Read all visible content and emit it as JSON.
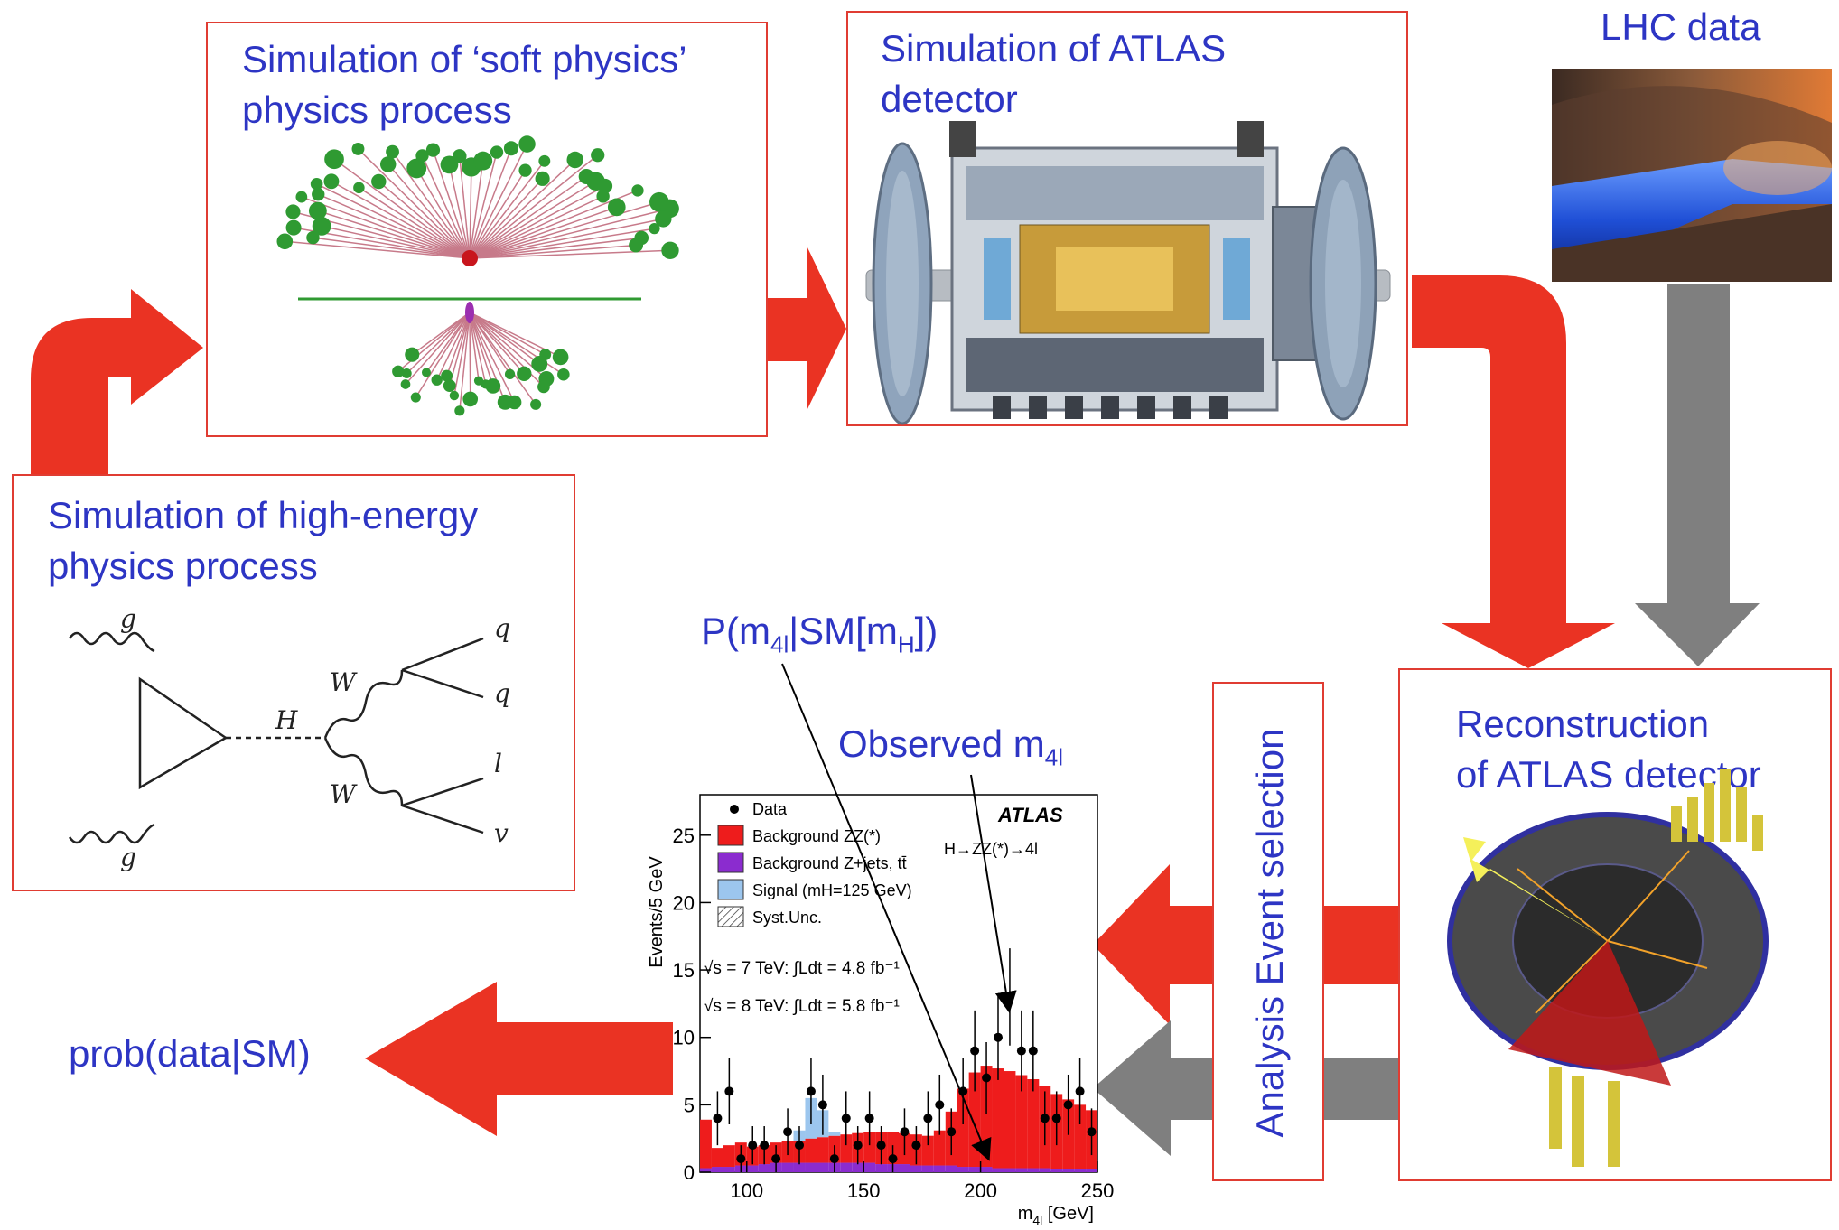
{
  "panels": {
    "soft_physics": {
      "title": "Simulation of ‘soft physics’\nphysics process"
    },
    "atlas_sim": {
      "title": "Simulation of ATLAS\ndetector"
    },
    "lhc": {
      "title": "LHC data"
    },
    "high_energy": {
      "title": "Simulation of high-energy\nphysics process"
    },
    "reconstruction": {
      "title": "Reconstruction\nof ATLAS detector"
    },
    "event_selection": {
      "title": "Analysis Event selection"
    }
  },
  "feynman": {
    "g_top": "g",
    "g_bottom": "g",
    "H": "H",
    "W_top": "W",
    "W_bottom": "W",
    "q1": "q",
    "q2": "q",
    "l": "l",
    "v": "v"
  },
  "labels": {
    "prob": "prob(data|SM)",
    "p_base": "P(m",
    "p_sub1": "4l",
    "p_mid": "|SM[m",
    "p_sub2": "H",
    "p_end": "])",
    "obs_base": "Observed m",
    "obs_sub": "4l"
  },
  "colors": {
    "arrow_red": "#ea3323",
    "arrow_gray": "#7f7f7f",
    "panel_border": "#e03c32",
    "title_blue": "#2d35c4",
    "bkg_zz": "#ee1c1c",
    "bkg_zjets": "#8b2ccf",
    "signal": "#9cc6ee"
  },
  "chart_data": {
    "type": "bar",
    "ylabel": "Events/5 GeV",
    "xlabel_base": "m",
    "xlabel_sub": "4l",
    "xlabel_unit": " [GeV]",
    "xlim": [
      80,
      250
    ],
    "ylim": [
      0,
      28
    ],
    "x_ticks": [
      "100",
      "150",
      "200",
      "250"
    ],
    "y_ticks": [
      "0",
      "5",
      "10",
      "15",
      "20",
      "25"
    ],
    "brand": "ATLAS",
    "process": "H→ZZ(*)→4l",
    "lumi_7": "√s = 7 TeV: ∫Ldt = 4.8 fb⁻¹",
    "lumi_8": "√s = 8 TeV: ∫Ldt = 5.8 fb⁻¹",
    "legend": [
      {
        "label": "Data",
        "kind": "marker"
      },
      {
        "label": "Background ZZ(*)",
        "kind": "box",
        "color": "#ee1c1c"
      },
      {
        "label": "Background Z+jets, tt̄",
        "kind": "box",
        "color": "#8b2ccf"
      },
      {
        "label": "Signal (mH=125 GeV)",
        "kind": "box",
        "color": "#9cc6ee"
      },
      {
        "label": "Syst.Unc.",
        "kind": "hatch"
      }
    ],
    "bin_edges": [
      80,
      85,
      90,
      95,
      100,
      105,
      110,
      115,
      120,
      125,
      130,
      135,
      140,
      145,
      150,
      155,
      160,
      165,
      170,
      175,
      180,
      185,
      190,
      195,
      200,
      205,
      210,
      215,
      220,
      225,
      230,
      235,
      240,
      245,
      250
    ],
    "series": [
      {
        "name": "Background Z+jets, tt̄",
        "values": [
          0.3,
          0.4,
          0.4,
          0.5,
          0.5,
          0.6,
          0.7,
          0.7,
          0.7,
          0.7,
          0.7,
          0.7,
          0.7,
          0.7,
          0.7,
          0.6,
          0.6,
          0.6,
          0.5,
          0.5,
          0.5,
          0.5,
          0.4,
          0.4,
          0.4,
          0.3,
          0.3,
          0.3,
          0.3,
          0.3,
          0.2,
          0.2,
          0.2,
          0.2
        ]
      },
      {
        "name": "Background ZZ(*)",
        "values": [
          3.6,
          1.4,
          1.6,
          1.7,
          1.4,
          1.4,
          1.5,
          1.6,
          1.6,
          1.8,
          1.9,
          2.0,
          2.1,
          2.2,
          2.3,
          2.4,
          2.4,
          2.3,
          2.3,
          2.2,
          2.6,
          4.0,
          5.8,
          7.0,
          7.5,
          7.4,
          7.2,
          6.9,
          6.6,
          6.1,
          5.6,
          5.2,
          4.8,
          4.4
        ]
      },
      {
        "name": "Signal (mH=125 GeV)",
        "values": [
          0,
          0,
          0,
          0,
          0,
          0,
          0,
          0,
          0.8,
          3.0,
          2.0,
          0.3,
          0,
          0,
          0,
          0,
          0,
          0,
          0,
          0,
          0,
          0,
          0,
          0,
          0,
          0,
          0,
          0,
          0,
          0,
          0,
          0,
          0,
          0
        ]
      }
    ],
    "data_points": {
      "x": [
        87.5,
        92.5,
        97.5,
        102.5,
        107.5,
        112.5,
        117.5,
        122.5,
        127.5,
        132.5,
        137.5,
        142.5,
        147.5,
        152.5,
        157.5,
        162.5,
        167.5,
        172.5,
        177.5,
        182.5,
        187.5,
        192.5,
        197.5,
        202.5,
        207.5,
        212.5,
        217.5,
        222.5,
        227.5,
        232.5,
        237.5,
        242.5,
        247.5
      ],
      "y": [
        4,
        6,
        1,
        2,
        2,
        1,
        3,
        2,
        6,
        5,
        1,
        4,
        2,
        4,
        2,
        1,
        3,
        2,
        4,
        5,
        3,
        6,
        9,
        7,
        10,
        13,
        9,
        9,
        4,
        4,
        5,
        6,
        3
      ]
    }
  }
}
